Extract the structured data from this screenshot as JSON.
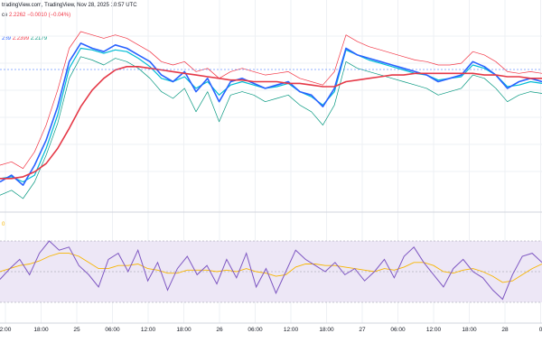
{
  "header": {
    "attribution": "TradingView, Nov 28, 2025 10:57 UTC",
    "attribution_prefix": "tradingView.com, ",
    "price_prefix": "ce",
    "price_last": "2.2262",
    "price_change": "−0.0010 (−0.04%)",
    "ind_1": "289",
    "ind_2": "2.2399",
    "ind_3": "2.2179",
    "rsi_label": "0"
  },
  "x_ticks": [
    "2:00",
    "18:00",
    "25",
    "06:00",
    "12:00",
    "18:00",
    "26",
    "06:00",
    "12:00",
    "18:00",
    "27",
    "06:00",
    "12:00",
    "18:00",
    "28",
    "0"
  ],
  "colors": {
    "price": "#2962ff",
    "upper": "#f23645",
    "lower": "#089981",
    "mid": "#00bcd4",
    "ma_long": "#e53947",
    "rsi": "#7e57c2",
    "rsi_ma": "#f7b500",
    "rsi_band": "#ede7f6"
  },
  "chart_data": [
    {
      "type": "line",
      "title": "",
      "series": [
        {
          "values": [
            0.1,
            0.14,
            0.08,
            0.2,
            0.35,
            0.55,
            0.82,
            0.93,
            0.9,
            0.88,
            0.92,
            0.9,
            0.86,
            0.82,
            0.74,
            0.7,
            0.76,
            0.64,
            0.72,
            0.58,
            0.7,
            0.72,
            0.69,
            0.66,
            0.68,
            0.7,
            0.64,
            0.62,
            0.55,
            0.66,
            0.9,
            0.86,
            0.84,
            0.82,
            0.8,
            0.78,
            0.76,
            0.74,
            0.7,
            0.72,
            0.74,
            0.82,
            0.79,
            0.74,
            0.66,
            0.7,
            0.72,
            0.7
          ]
        },
        {
          "values": [
            0.2,
            0.22,
            0.18,
            0.28,
            0.44,
            0.65,
            0.9,
            1.0,
            0.98,
            0.96,
            0.98,
            0.96,
            0.92,
            0.88,
            0.82,
            0.8,
            0.82,
            0.76,
            0.78,
            0.72,
            0.76,
            0.78,
            0.76,
            0.74,
            0.75,
            0.76,
            0.72,
            0.7,
            0.68,
            0.76,
            0.98,
            0.94,
            0.91,
            0.89,
            0.87,
            0.85,
            0.83,
            0.82,
            0.8,
            0.8,
            0.81,
            0.88,
            0.86,
            0.82,
            0.76,
            0.75,
            0.76,
            0.75
          ]
        },
        {
          "values": [
            0.02,
            0.05,
            0.0,
            0.1,
            0.26,
            0.45,
            0.72,
            0.85,
            0.83,
            0.8,
            0.84,
            0.82,
            0.78,
            0.72,
            0.64,
            0.6,
            0.66,
            0.52,
            0.64,
            0.46,
            0.62,
            0.64,
            0.62,
            0.58,
            0.6,
            0.62,
            0.56,
            0.52,
            0.44,
            0.56,
            0.82,
            0.78,
            0.76,
            0.74,
            0.72,
            0.7,
            0.68,
            0.66,
            0.62,
            0.64,
            0.66,
            0.74,
            0.72,
            0.66,
            0.58,
            0.62,
            0.64,
            0.63
          ]
        },
        {
          "values": [
            0.12,
            0.13,
            0.1,
            0.14,
            0.3,
            0.5,
            0.78,
            0.9,
            0.89,
            0.87,
            0.89,
            0.88,
            0.84,
            0.79,
            0.72,
            0.7,
            0.73,
            0.66,
            0.7,
            0.62,
            0.68,
            0.7,
            0.68,
            0.66,
            0.67,
            0.69,
            0.64,
            0.61,
            0.56,
            0.64,
            0.89,
            0.86,
            0.83,
            0.81,
            0.79,
            0.77,
            0.75,
            0.74,
            0.71,
            0.72,
            0.73,
            0.8,
            0.78,
            0.74,
            0.67,
            0.68,
            0.7,
            0.69
          ]
        },
        {
          "values": [
            0.12,
            0.12,
            0.13,
            0.16,
            0.21,
            0.3,
            0.42,
            0.55,
            0.65,
            0.72,
            0.77,
            0.79,
            0.79,
            0.78,
            0.77,
            0.76,
            0.75,
            0.74,
            0.73,
            0.72,
            0.71,
            0.71,
            0.7,
            0.7,
            0.7,
            0.69,
            0.69,
            0.68,
            0.67,
            0.67,
            0.7,
            0.71,
            0.72,
            0.73,
            0.74,
            0.74,
            0.75,
            0.75,
            0.75,
            0.75,
            0.75,
            0.75,
            0.74,
            0.74,
            0.73,
            0.73,
            0.72,
            0.72
          ]
        }
      ]
    },
    {
      "type": "line",
      "title": "",
      "series": [
        {
          "values": [
            45,
            52,
            58,
            48,
            62,
            70,
            64,
            66,
            54,
            48,
            40,
            58,
            62,
            50,
            64,
            44,
            56,
            38,
            52,
            60,
            48,
            54,
            42,
            58,
            46,
            62,
            40,
            52,
            36,
            50,
            64,
            58,
            54,
            50,
            56,
            48,
            52,
            44,
            50,
            58,
            46,
            60,
            66,
            56,
            48,
            40,
            52,
            58,
            50,
            46,
            38,
            32,
            48,
            60,
            62,
            56
          ]
        },
        {
          "values": [
            50,
            52,
            54,
            55,
            57,
            60,
            62,
            62,
            60,
            56,
            52,
            52,
            54,
            54,
            55,
            52,
            51,
            49,
            49,
            51,
            51,
            51,
            50,
            51,
            50,
            52,
            50,
            49,
            47,
            48,
            53,
            55,
            55,
            54,
            54,
            53,
            52,
            51,
            50,
            52,
            51,
            53,
            56,
            56,
            54,
            50,
            49,
            51,
            52,
            50,
            47,
            43,
            44,
            48,
            52,
            55
          ]
        }
      ],
      "ylim": [
        20,
        80
      ],
      "bands": [
        30,
        70
      ]
    }
  ]
}
